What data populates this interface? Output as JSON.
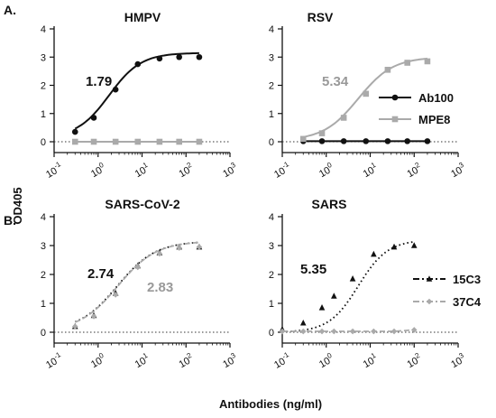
{
  "figure": {
    "ylabel": "OD405",
    "xlabel": "Antibodies (ng/ml)",
    "panel_labels": [
      "A.",
      "B."
    ]
  },
  "chart_data": [
    {
      "type": "scatter",
      "title": "HMPV",
      "x_scale": "log",
      "xlim": [
        0.1,
        1000
      ],
      "ylim": [
        0,
        4
      ],
      "x_ticks": [
        "10^-1",
        "10^0",
        "10^1",
        "10^2",
        "10^3"
      ],
      "y_ticks": [
        0,
        1,
        2,
        3,
        4
      ],
      "zero_reference_line": "dotted",
      "annotations": [
        {
          "text": "1.79",
          "color": "#111111"
        }
      ],
      "series": [
        {
          "color": "#111111",
          "marker": "circle",
          "line": "solid",
          "fit": {
            "bottom": 0.15,
            "top": 3.15,
            "ec50": 1.79,
            "hill": 1.2
          },
          "x": [
            0.3,
            0.8,
            2.5,
            8,
            25,
            70,
            200
          ],
          "y": [
            0.35,
            0.85,
            1.85,
            2.75,
            2.95,
            3.0,
            3.0
          ]
        },
        {
          "color": "#aaaaaa",
          "marker": "square",
          "line": "solid",
          "fit": null,
          "x": [
            0.3,
            0.8,
            2.5,
            8,
            25,
            70,
            200
          ],
          "y": [
            0,
            0,
            0,
            0,
            0,
            0,
            0
          ]
        }
      ]
    },
    {
      "type": "scatter",
      "title": "RSV",
      "x_scale": "log",
      "xlim": [
        0.1,
        1000
      ],
      "ylim": [
        0,
        4
      ],
      "x_ticks": [
        "10^-1",
        "10^0",
        "10^1",
        "10^2",
        "10^3"
      ],
      "y_ticks": [
        0,
        1,
        2,
        3,
        4
      ],
      "zero_reference_line": "dotted",
      "annotations": [
        {
          "text": "5.34",
          "color": "#999999"
        }
      ],
      "legend": [
        {
          "label": "Ab100",
          "color": "#111111",
          "marker": "circle",
          "line": "solid"
        },
        {
          "label": "MPE8",
          "color": "#aaaaaa",
          "marker": "square",
          "line": "solid"
        }
      ],
      "series": [
        {
          "name": "Ab100",
          "color": "#111111",
          "marker": "circle",
          "line": "solid",
          "fit": null,
          "x": [
            0.3,
            0.8,
            2.5,
            8,
            25,
            70,
            200
          ],
          "y": [
            0.02,
            0.02,
            0.02,
            0.02,
            0.02,
            0.02,
            0.02
          ]
        },
        {
          "name": "MPE8",
          "color": "#aaaaaa",
          "marker": "square",
          "line": "solid",
          "fit": {
            "bottom": 0.05,
            "top": 3.0,
            "ec50": 5.34,
            "hill": 1.1
          },
          "x": [
            0.3,
            0.8,
            2.5,
            8,
            25,
            70,
            200
          ],
          "y": [
            0.1,
            0.3,
            0.85,
            1.7,
            2.55,
            2.8,
            2.85
          ]
        }
      ]
    },
    {
      "type": "scatter",
      "title": "SARS-CoV-2",
      "x_scale": "log",
      "xlim": [
        0.1,
        1000
      ],
      "ylim": [
        0,
        4
      ],
      "x_ticks": [
        "10^-1",
        "10^0",
        "10^1",
        "10^2",
        "10^3"
      ],
      "y_ticks": [
        0,
        1,
        2,
        3,
        4
      ],
      "zero_reference_line": "dotted",
      "annotations": [
        {
          "text": "2.74",
          "color": "#111111"
        },
        {
          "text": "2.83",
          "color": "#999999"
        }
      ],
      "series": [
        {
          "color": "#111111",
          "marker": "triangle",
          "line": "dotted",
          "fit": {
            "bottom": 0.05,
            "top": 3.15,
            "ec50": 2.74,
            "hill": 1.0
          },
          "x": [
            0.3,
            0.8,
            2.5,
            8,
            25,
            70,
            200
          ],
          "y": [
            0.2,
            0.58,
            1.35,
            2.3,
            2.75,
            2.95,
            2.95
          ]
        },
        {
          "color": "#aaaaaa",
          "marker": "diamond",
          "line": "dashed",
          "fit": {
            "bottom": 0.05,
            "top": 3.15,
            "ec50": 2.83,
            "hill": 1.0
          },
          "x": [
            0.3,
            0.8,
            2.5,
            8,
            25,
            70,
            200
          ],
          "y": [
            0.2,
            0.55,
            1.3,
            2.25,
            2.72,
            2.92,
            2.95
          ]
        }
      ]
    },
    {
      "type": "scatter",
      "title": "SARS",
      "x_scale": "log",
      "xlim": [
        0.1,
        1000
      ],
      "ylim": [
        0,
        4
      ],
      "x_ticks": [
        "10^-1",
        "10^0",
        "10^1",
        "10^2",
        "10^3"
      ],
      "y_ticks": [
        0,
        1,
        2,
        3,
        4
      ],
      "zero_reference_line": "dotted",
      "annotations": [
        {
          "text": "5.35",
          "color": "#111111"
        }
      ],
      "legend": [
        {
          "label": "15C3",
          "color": "#111111",
          "marker": "triangle",
          "line": "dashdot"
        },
        {
          "label": "37C4",
          "color": "#aaaaaa",
          "marker": "diamond",
          "line": "dashdot"
        }
      ],
      "series": [
        {
          "name": "15C3",
          "color": "#111111",
          "marker": "triangle",
          "line": "dotted",
          "fit": {
            "bottom": 0.0,
            "top": 3.2,
            "ec50": 5.35,
            "hill": 1.3
          },
          "x": [
            0.1,
            0.3,
            0.8,
            1.5,
            4,
            12,
            35,
            100
          ],
          "y": [
            0.1,
            0.32,
            0.85,
            1.25,
            1.85,
            2.7,
            2.95,
            3.0
          ]
        },
        {
          "name": "37C4",
          "color": "#aaaaaa",
          "marker": "diamond",
          "line": "dashed",
          "fit": null,
          "x": [
            0.1,
            0.3,
            0.8,
            1.5,
            4,
            12,
            35,
            100
          ],
          "y": [
            0.03,
            0.03,
            0.03,
            0.03,
            0.03,
            0.03,
            0.03,
            0.08
          ]
        }
      ]
    }
  ]
}
